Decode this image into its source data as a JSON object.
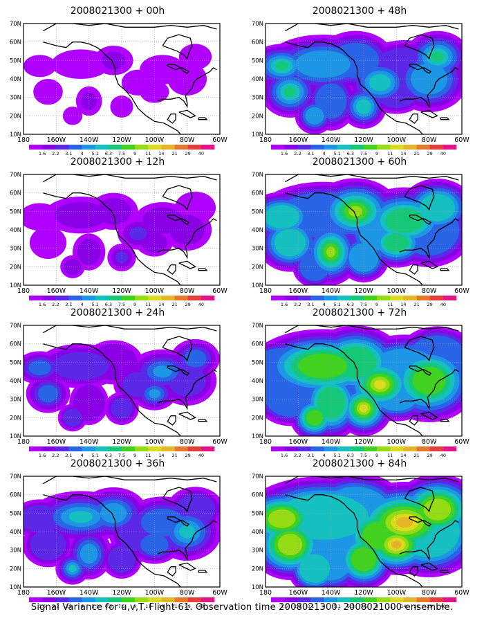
{
  "caption": "Signal Variance for u,v,T. Flight 61. Observation time 2008021300. 2008021000 ensemble.",
  "map": {
    "lat_labels": [
      "70N",
      "60N",
      "50N",
      "40N",
      "30N",
      "20N",
      "10N"
    ],
    "lon_labels": [
      "180",
      "160W",
      "140W",
      "120W",
      "100W",
      "80W",
      "60W"
    ]
  },
  "colorbar": {
    "levels": [
      "1.6",
      "2.2",
      "3.1",
      "4",
      "5.1",
      "6.3",
      "7.5",
      "9",
      "11",
      "14",
      "21",
      "29",
      "40"
    ],
    "colors": [
      "#b000ff",
      "#8a00e6",
      "#5a28e6",
      "#2a64e6",
      "#1e96e6",
      "#14c0c0",
      "#14c878",
      "#40d21e",
      "#96dc14",
      "#dcdc1e",
      "#e6b428",
      "#e6782d",
      "#e63c3c",
      "#e6148c"
    ]
  },
  "panels": [
    {
      "title": "2008021300 + 00h",
      "intensity": 0
    },
    {
      "title": "2008021300 + 12h",
      "intensity": 1
    },
    {
      "title": "2008021300 + 24h",
      "intensity": 2
    },
    {
      "title": "2008021300 + 36h",
      "intensity": 3
    },
    {
      "title": "2008021300 + 48h",
      "intensity": 4
    },
    {
      "title": "2008021300 + 60h",
      "intensity": 5
    },
    {
      "title": "2008021300 + 72h",
      "intensity": 6
    },
    {
      "title": "2008021300 + 84h",
      "intensity": 7
    }
  ]
}
